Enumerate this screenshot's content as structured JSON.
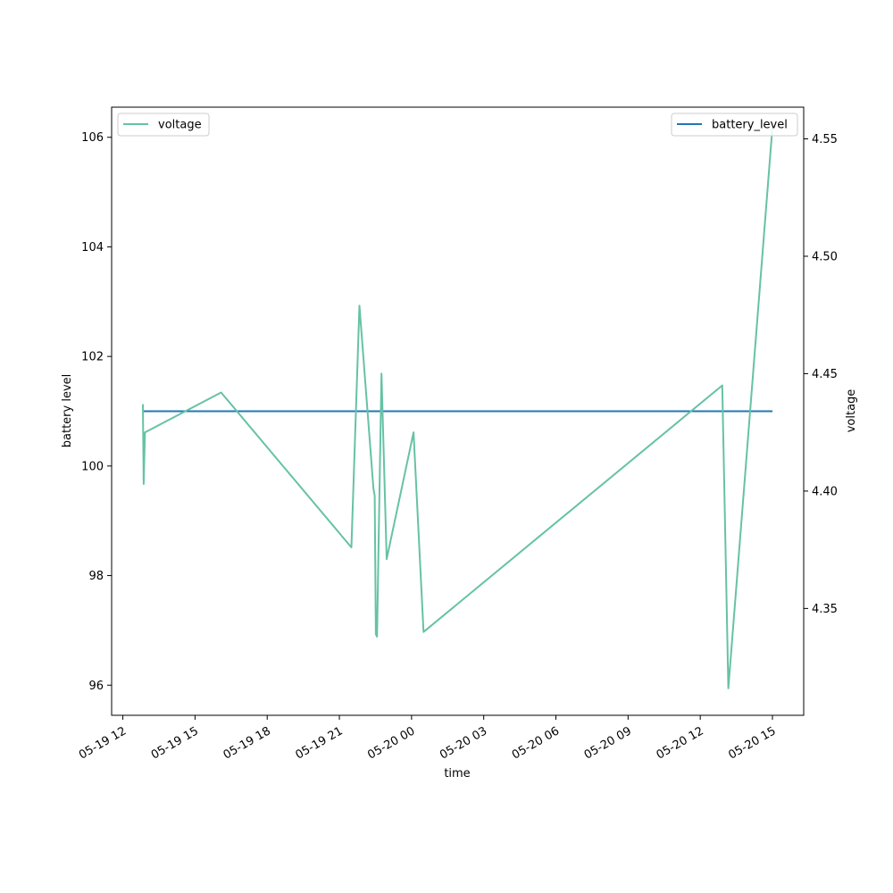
{
  "chart_data": {
    "type": "line",
    "xlabel": "time",
    "ylabel_left": "battery level",
    "ylabel_right": "voltage",
    "x_ticks": [
      {
        "t": "2024-05-19T12:00",
        "label": "05-19 12"
      },
      {
        "t": "2024-05-19T15:00",
        "label": "05-19 15"
      },
      {
        "t": "2024-05-19T18:00",
        "label": "05-19 18"
      },
      {
        "t": "2024-05-19T21:00",
        "label": "05-19 21"
      },
      {
        "t": "2024-05-20T00:00",
        "label": "05-20 00"
      },
      {
        "t": "2024-05-20T03:00",
        "label": "05-20 03"
      },
      {
        "t": "2024-05-20T06:00",
        "label": "05-20 06"
      },
      {
        "t": "2024-05-20T09:00",
        "label": "05-20 09"
      },
      {
        "t": "2024-05-20T12:00",
        "label": "05-20 12"
      },
      {
        "t": "2024-05-20T15:00",
        "label": "05-20 15"
      }
    ],
    "xlim": [
      "2024-05-19T11:32",
      "2024-05-20T16:18"
    ],
    "left_axis": {
      "ylim": [
        95.45,
        106.55
      ],
      "ticks": [
        96,
        98,
        100,
        102,
        104,
        106
      ],
      "tick_labels": [
        "96",
        "98",
        "100",
        "102",
        "104",
        "106"
      ]
    },
    "right_axis": {
      "ylim": [
        4.3045,
        4.5635
      ],
      "ticks": [
        4.35,
        4.4,
        4.45,
        4.5,
        4.55
      ],
      "tick_labels": [
        "4.35",
        "4.40",
        "4.45",
        "4.50",
        "4.55"
      ]
    },
    "series": [
      {
        "name": "battery_level",
        "axis": "left",
        "color": "#1f77b4",
        "t": [
          "2024-05-19T12:50",
          "2024-05-20T15:00"
        ],
        "y": [
          101,
          101
        ]
      },
      {
        "name": "voltage",
        "axis": "right",
        "color": "#66c2a5",
        "t": [
          "2024-05-19T12:50",
          "2024-05-19T12:52",
          "2024-05-19T12:55",
          "2024-05-19T16:05",
          "2024-05-19T21:30",
          "2024-05-19T21:50",
          "2024-05-19T22:25",
          "2024-05-19T22:28",
          "2024-05-19T22:31",
          "2024-05-19T22:34",
          "2024-05-19T22:45",
          "2024-05-19T22:58",
          "2024-05-20T00:05",
          "2024-05-20T00:30",
          "2024-05-20T12:55",
          "2024-05-20T13:10",
          "2024-05-20T15:00"
        ],
        "y": [
          4.437,
          4.403,
          4.425,
          4.442,
          4.376,
          4.479,
          4.401,
          4.398,
          4.339,
          4.338,
          4.45,
          4.371,
          4.425,
          4.34,
          4.445,
          4.316,
          4.555
        ]
      }
    ],
    "legend_left": {
      "position": "upper-left",
      "entries": [
        "voltage"
      ]
    },
    "legend_right": {
      "position": "upper-right",
      "entries": [
        "battery_level"
      ]
    },
    "grid": false
  }
}
